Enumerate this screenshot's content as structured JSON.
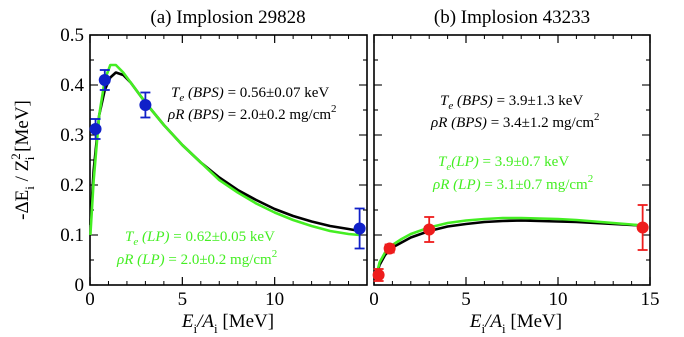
{
  "colors": {
    "bps": "#000000",
    "lp": "#44ee22",
    "data_a": "#1020c8",
    "data_b": "#ee1c1c",
    "annot_a": "#000000",
    "annot_b": "#000000"
  },
  "y_axis_label": "-ΔE_i / Z_i^2  [MeV]",
  "chart_data": [
    {
      "type": "line",
      "title": "(a) Implosion 29828",
      "xlabel": "E_i/A_i [MeV]",
      "ylabel": "-ΔE_i / Z_i^2 [MeV]",
      "xlim": [
        0,
        15
      ],
      "ylim": [
        0,
        0.5
      ],
      "xticks": [
        "0",
        "5",
        "10"
      ],
      "yticks": [
        "0",
        "0.1",
        "0.2",
        "0.3",
        "0.4",
        "0.5"
      ],
      "series": [
        {
          "name": "BPS",
          "color": "#000000",
          "x": [
            0.02,
            0.2,
            0.5,
            0.8,
            1.1,
            1.4,
            1.8,
            2.2,
            2.6,
            3,
            4,
            5,
            6,
            7,
            8,
            9,
            10,
            11,
            12,
            13,
            14,
            14.6
          ],
          "y": [
            0.12,
            0.23,
            0.34,
            0.39,
            0.415,
            0.425,
            0.42,
            0.405,
            0.385,
            0.365,
            0.32,
            0.28,
            0.245,
            0.215,
            0.19,
            0.17,
            0.152,
            0.138,
            0.127,
            0.118,
            0.112,
            0.108
          ]
        },
        {
          "name": "LP",
          "color": "#44ee22",
          "x": [
            0.02,
            0.2,
            0.5,
            0.8,
            1.1,
            1.4,
            1.8,
            2.2,
            2.6,
            3,
            4,
            5,
            6,
            7,
            8,
            9,
            10,
            11,
            12,
            13,
            14,
            14.6
          ],
          "y": [
            0.1,
            0.21,
            0.34,
            0.41,
            0.44,
            0.44,
            0.425,
            0.405,
            0.385,
            0.365,
            0.32,
            0.28,
            0.245,
            0.21,
            0.185,
            0.163,
            0.145,
            0.13,
            0.118,
            0.108,
            0.102,
            0.1
          ]
        }
      ],
      "points": {
        "color": "#1020c8",
        "x": [
          0.3,
          0.8,
          3.0,
          14.6
        ],
        "y": [
          0.312,
          0.41,
          0.36,
          0.113
        ],
        "err": [
          0.02,
          0.02,
          0.025,
          0.04
        ]
      },
      "annotations": [
        {
          "lines": [
            "T_e (BPS) = 0.56±0.07 keV",
            "ρR (BPS) = 2.0±0.2 mg/cm^2"
          ],
          "color": "#000000"
        },
        {
          "lines": [
            "T_e (LP) = 0.62±0.05 keV",
            "ρR (LP) = 2.0±0.2 mg/cm^2"
          ],
          "color": "#44ee22"
        }
      ]
    },
    {
      "type": "line",
      "title": "(b) Implosion 43233",
      "xlabel": "E_i/A_i [MeV]",
      "ylabel": "",
      "xlim": [
        0,
        15
      ],
      "ylim": [
        0,
        0.5
      ],
      "xticks": [
        "0",
        "5",
        "10",
        "15"
      ],
      "series": [
        {
          "name": "BPS",
          "color": "#000000",
          "x": [
            0.1,
            0.3,
            0.6,
            1,
            1.5,
            2,
            3,
            4,
            5,
            6,
            7,
            8,
            9,
            10,
            11,
            12,
            13,
            14,
            14.6
          ],
          "y": [
            0.015,
            0.04,
            0.06,
            0.075,
            0.085,
            0.095,
            0.108,
            0.117,
            0.122,
            0.126,
            0.128,
            0.129,
            0.128,
            0.127,
            0.126,
            0.124,
            0.122,
            0.12,
            0.119
          ]
        },
        {
          "name": "LP",
          "color": "#44ee22",
          "x": [
            0.1,
            0.3,
            0.6,
            1,
            1.5,
            2,
            3,
            4,
            5,
            6,
            7,
            8,
            9,
            10,
            11,
            12,
            13,
            14,
            14.6
          ],
          "y": [
            0.015,
            0.045,
            0.065,
            0.08,
            0.092,
            0.102,
            0.115,
            0.124,
            0.129,
            0.132,
            0.134,
            0.134,
            0.133,
            0.132,
            0.13,
            0.127,
            0.124,
            0.121,
            0.119
          ]
        }
      ],
      "points": {
        "color": "#ee1c1c",
        "x": [
          0.25,
          0.85,
          3.0,
          14.6
        ],
        "y": [
          0.02,
          0.073,
          0.111,
          0.115
        ],
        "err": [
          0.012,
          0.008,
          0.025,
          0.045
        ]
      },
      "annotations": [
        {
          "lines": [
            "T_e (BPS) = 3.9±1.3 keV",
            "ρR (BPS) = 3.4±1.2 mg/cm^2"
          ],
          "color": "#000000"
        },
        {
          "lines": [
            "T_e (LP) = 3.9±0.7 keV",
            "ρR (LP) = 3.1±0.7 mg/cm^2"
          ],
          "color": "#44ee22"
        }
      ]
    }
  ]
}
